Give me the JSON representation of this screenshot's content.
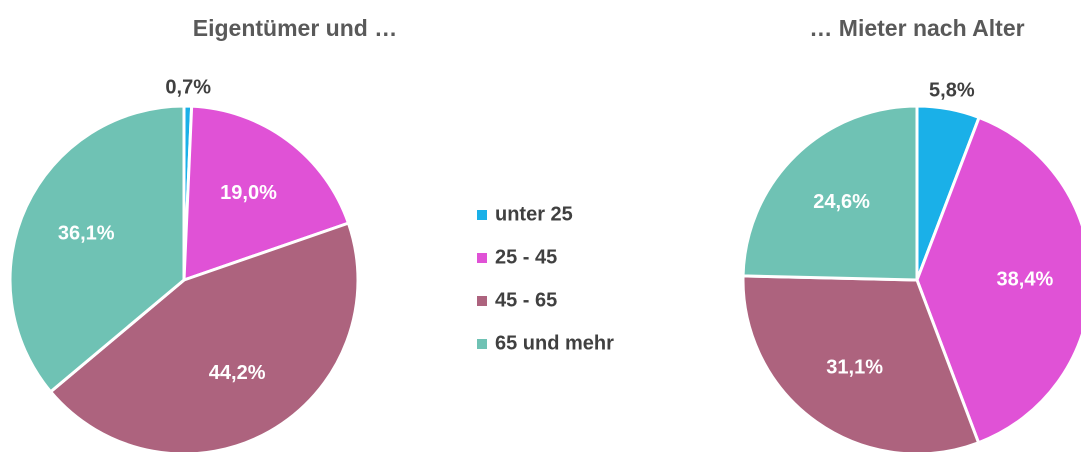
{
  "chart_data": [
    {
      "type": "pie",
      "title": "Eigentümer und …",
      "categories": [
        "unter 25",
        "25 - 45",
        "45 - 65",
        "65 und mehr"
      ],
      "values": [
        0.7,
        19.0,
        44.2,
        36.1
      ],
      "value_labels": [
        "0,7%",
        "19,0%",
        "44,2%",
        "36,1%"
      ],
      "colors": [
        "#1ab0e8",
        "#e052d6",
        "#ad637e",
        "#6fc2b4"
      ],
      "legend": "center"
    },
    {
      "type": "pie",
      "title": "… Mieter nach Alter",
      "categories": [
        "unter 25",
        "25 - 45",
        "45 - 65",
        "65 und mehr"
      ],
      "values": [
        5.8,
        38.4,
        31.1,
        24.6
      ],
      "value_labels": [
        "5,8%",
        "38,4%",
        "31,1%",
        "24,6%"
      ],
      "colors": [
        "#1ab0e8",
        "#e052d6",
        "#ad637e",
        "#6fc2b4"
      ]
    }
  ]
}
